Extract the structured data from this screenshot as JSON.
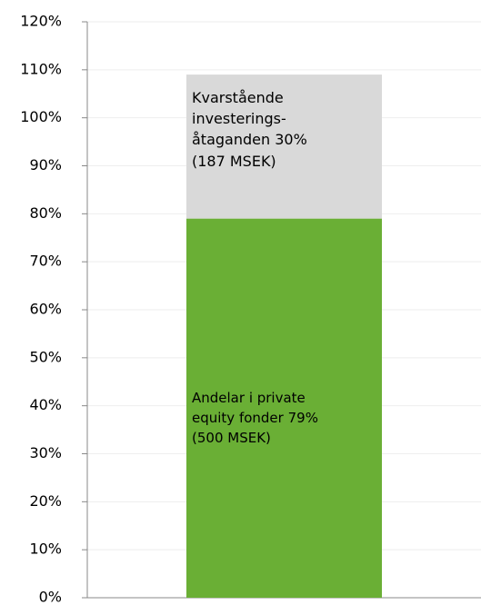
{
  "chart_data": {
    "type": "stacked_bar",
    "categories": [
      null
    ],
    "series": [
      {
        "name": "Andelar i private equity fonder",
        "color": "#6aaf35",
        "values": [
          79
        ],
        "value_labels": [
          "79% (500 MSEK)"
        ]
      },
      {
        "name": "Kvarstående investerings-åtaganden",
        "color": "#d9d9d9",
        "values": [
          30
        ],
        "value_labels": [
          "30% (187 MSEK)"
        ]
      }
    ],
    "ylim": [
      0,
      120
    ],
    "yticks": [
      {
        "value": 0,
        "label": "0%"
      },
      {
        "value": 10,
        "label": "10%"
      },
      {
        "value": 20,
        "label": "20%"
      },
      {
        "value": 30,
        "label": "30%"
      },
      {
        "value": 40,
        "label": "40%"
      },
      {
        "value": 50,
        "label": "50%"
      },
      {
        "value": 60,
        "label": "60%"
      },
      {
        "value": 70,
        "label": "70%"
      },
      {
        "value": 80,
        "label": "80%"
      },
      {
        "value": 90,
        "label": "90%"
      },
      {
        "value": 100,
        "label": "100%"
      },
      {
        "value": 110,
        "label": "110%"
      },
      {
        "value": 120,
        "label": "120%"
      }
    ],
    "grid": true
  }
}
